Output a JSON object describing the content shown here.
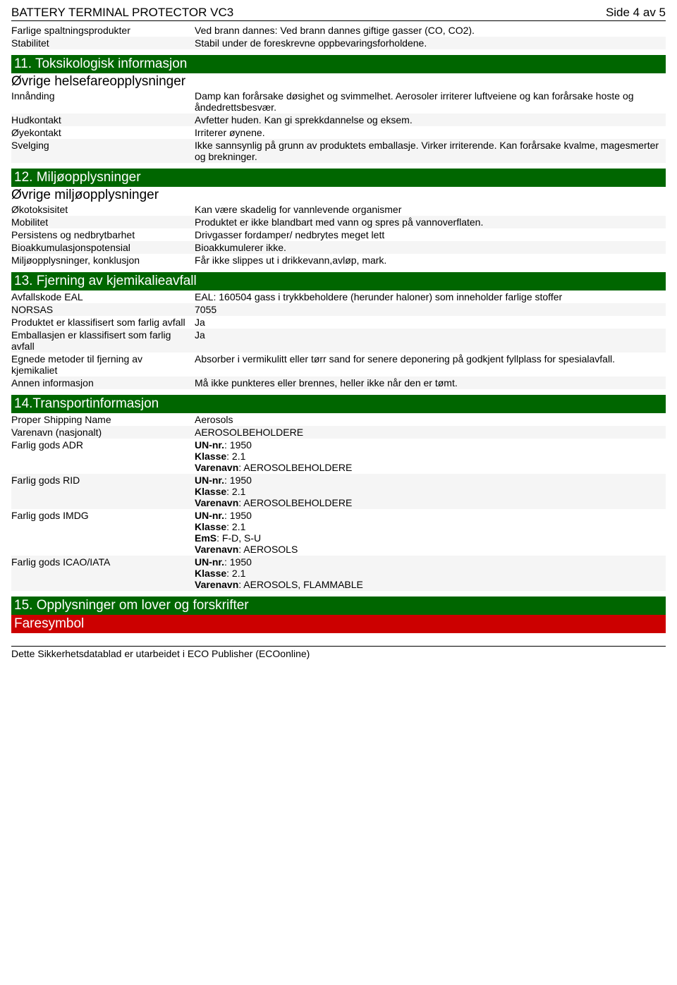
{
  "header": {
    "title": "BATTERY TERMINAL PROTECTOR VC3",
    "page": "Side 4 av 5"
  },
  "top_rows": [
    {
      "label": "Farlige spaltningsprodukter",
      "value": "Ved brann dannes: Ved brann dannes giftige gasser (CO, CO2).",
      "alt": false
    },
    {
      "label": "Stabilitet",
      "value": "Stabil under de foreskrevne oppbevaringsforholdene.",
      "alt": true
    }
  ],
  "section11": {
    "title": "11. Toksikologisk informasjon",
    "subtitle": "Øvrige helsefareopplysninger",
    "rows": [
      {
        "label": "Innånding",
        "value": "Damp kan forårsake døsighet og svimmelhet. Aerosoler irriterer luftveiene og kan forårsake hoste og åndedrettsbesvær.",
        "alt": false
      },
      {
        "label": "Hudkontakt",
        "value": "Avfetter huden. Kan gi sprekkdannelse og eksem.",
        "alt": true
      },
      {
        "label": "Øyekontakt",
        "value": "Irriterer øynene.",
        "alt": false
      },
      {
        "label": "Svelging",
        "value": "Ikke sannsynlig på grunn av produktets emballasje. Virker irriterende. Kan forårsake kvalme, magesmerter og brekninger.",
        "alt": true
      }
    ]
  },
  "section12": {
    "title": "12. Miljøopplysninger",
    "subtitle": "Øvrige miljøopplysninger",
    "rows": [
      {
        "label": "Økotoksisitet",
        "value": "Kan være skadelig for vannlevende organismer",
        "alt": false
      },
      {
        "label": "Mobilitet",
        "value": "Produktet er ikke blandbart med vann og spres på vannoverflaten.",
        "alt": true
      },
      {
        "label": "Persistens og nedbrytbarhet",
        "value": "Drivgasser fordamper/ nedbrytes meget lett",
        "alt": false
      },
      {
        "label": "Bioakkumulasjonspotensial",
        "value": "Bioakkumulerer ikke.",
        "alt": true
      },
      {
        "label": "Miljøopplysninger, konklusjon",
        "value": "Får ikke slippes ut i drikkevann,avløp, mark.",
        "alt": false
      }
    ]
  },
  "section13": {
    "title": "13. Fjerning av kjemikalieavfall",
    "rows": [
      {
        "label": "Avfallskode EAL",
        "value": "EAL: 160504 gass i trykkbeholdere (herunder haloner) som inneholder farlige stoffer",
        "alt": false
      },
      {
        "label": "NORSAS",
        "value": "7055",
        "alt": true
      },
      {
        "label": "Produktet er klassifisert som farlig avfall",
        "value": "Ja",
        "alt": false
      },
      {
        "label": "Emballasjen er klassifisert som farlig avfall",
        "value": "Ja",
        "alt": true
      },
      {
        "label": "Egnede metoder til fjerning av kjemikaliet",
        "value": "Absorber i vermikulitt eller tørr sand for senere deponering på godkjent fyllplass for spesialavfall.",
        "alt": false
      },
      {
        "label": "Annen informasjon",
        "value": "Må ikke punkteres eller brennes, heller ikke når den er tømt.",
        "alt": true
      }
    ]
  },
  "section14": {
    "title": "14.Transportinformasjon",
    "rows": [
      {
        "label": "Proper Shipping Name",
        "value": "Aerosols",
        "alt": false
      },
      {
        "label": "Varenavn (nasjonalt)",
        "value": "AEROSOLBEHOLDERE",
        "alt": true
      },
      {
        "label": "Farlig gods ADR",
        "lines": [
          {
            "b": "UN-nr.",
            "t": ": 1950"
          },
          {
            "b": "Klasse",
            "t": ": 2.1"
          },
          {
            "b": "Varenavn",
            "t": ": AEROSOLBEHOLDERE"
          }
        ],
        "alt": false
      },
      {
        "label": "Farlig gods RID",
        "lines": [
          {
            "b": "UN-nr.",
            "t": ": 1950"
          },
          {
            "b": "Klasse",
            "t": ": 2.1"
          },
          {
            "b": "Varenavn",
            "t": ": AEROSOLBEHOLDERE"
          }
        ],
        "alt": true
      },
      {
        "label": "Farlig gods IMDG",
        "lines": [
          {
            "b": "UN-nr.",
            "t": ": 1950"
          },
          {
            "b": "Klasse",
            "t": ": 2.1"
          },
          {
            "b": "EmS",
            "t": ": F-D, S-U"
          },
          {
            "b": "Varenavn",
            "t": ": AEROSOLS"
          }
        ],
        "alt": false
      },
      {
        "label": "Farlig gods ICAO/IATA",
        "lines": [
          {
            "b": "UN-nr.",
            "t": ": 1950"
          },
          {
            "b": "Klasse",
            "t": ": 2.1"
          },
          {
            "b": "Varenavn",
            "t": ": AEROSOLS, FLAMMABLE"
          }
        ],
        "alt": true
      }
    ]
  },
  "section15": {
    "title": "15. Opplysninger om lover og forskrifter",
    "faresymbol": "Faresymbol"
  },
  "footer": "Dette Sikkerhetsdatablad er utarbeidet i ECO Publisher (ECOonline)"
}
